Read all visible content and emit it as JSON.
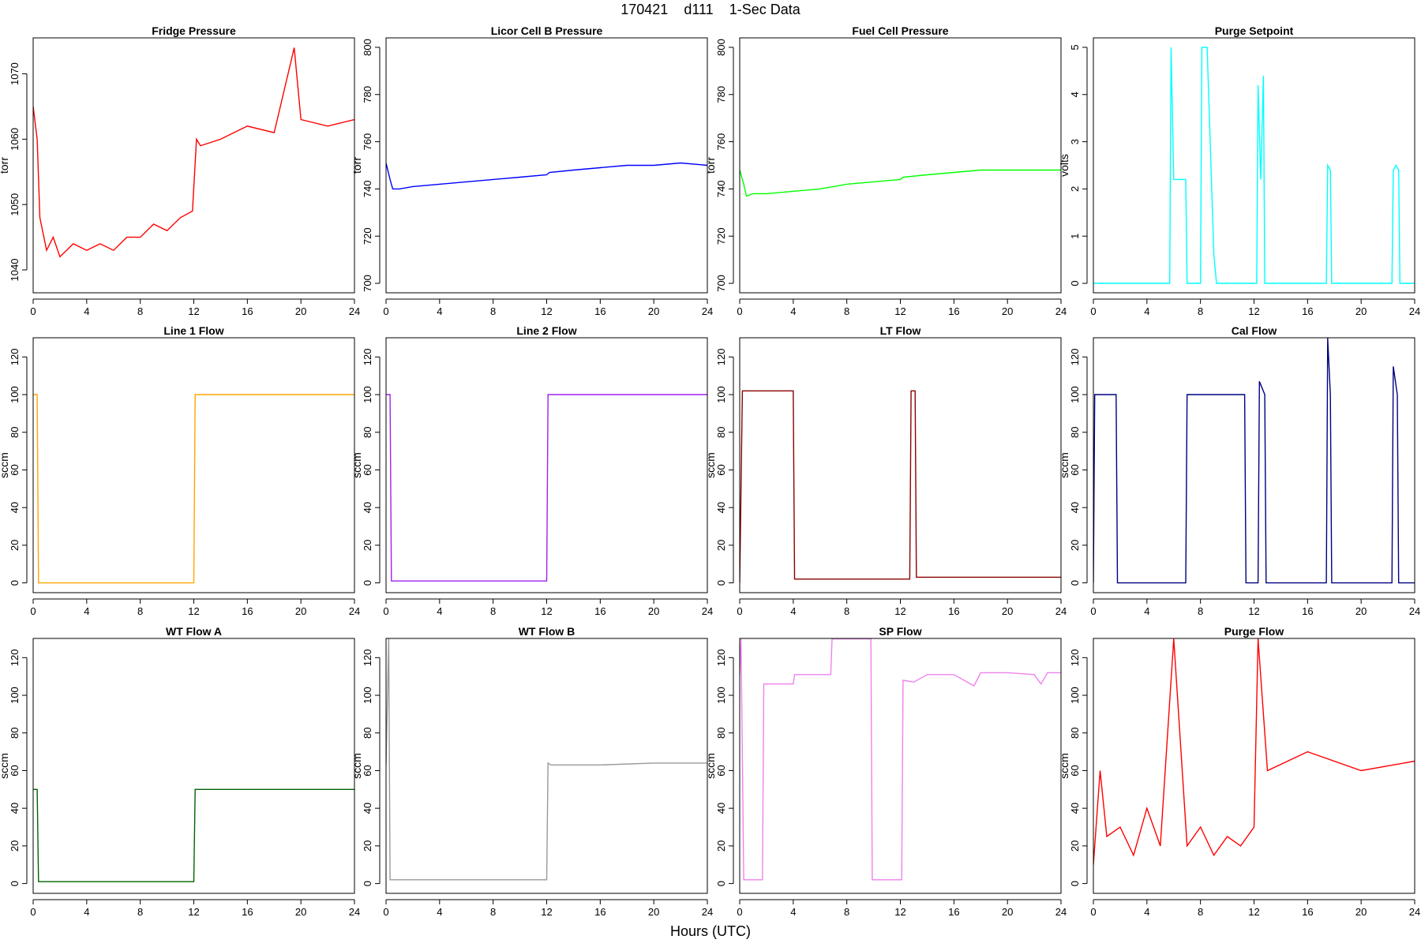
{
  "figure": {
    "title": "170421    d111    1-Sec Data",
    "xlabel": "Hours (UTC)"
  },
  "chart_data": [
    {
      "type": "line",
      "title": "Fridge Pressure",
      "ylabel": "torr",
      "color": "#ff0000",
      "xlim": [
        0,
        24
      ],
      "ylim": [
        1036.5,
        1075.5
      ],
      "xticks": [
        0,
        4,
        8,
        12,
        16,
        20,
        24
      ],
      "yticks": [
        1040,
        1050,
        1060,
        1070
      ],
      "series": [
        {
          "name": "Fridge Pressure",
          "x": [
            0,
            0.3,
            0.5,
            1,
            1.5,
            2,
            3,
            4,
            5,
            6,
            7,
            8,
            9,
            10,
            11,
            11.9,
            12.2,
            12.5,
            14,
            16,
            18,
            19.5,
            20,
            22,
            24
          ],
          "y": [
            1065,
            1060,
            1048,
            1043,
            1045,
            1042,
            1044,
            1043,
            1044,
            1043,
            1045,
            1045,
            1047,
            1046,
            1048,
            1049,
            1060,
            1059,
            1060,
            1062,
            1061,
            1074,
            1063,
            1062,
            1063
          ]
        }
      ]
    },
    {
      "type": "line",
      "title": "Licor Cell B Pressure",
      "ylabel": "torr",
      "color": "#0000ff",
      "xlim": [
        0,
        24
      ],
      "ylim": [
        696,
        804
      ],
      "xticks": [
        0,
        4,
        8,
        12,
        16,
        20,
        24
      ],
      "yticks": [
        700,
        720,
        740,
        760,
        780,
        800
      ],
      "series": [
        {
          "name": "Licor Cell B Pressure",
          "x": [
            0,
            0.3,
            0.5,
            1,
            2,
            4,
            6,
            8,
            10,
            12,
            12.2,
            14,
            16,
            18,
            20,
            22,
            24
          ],
          "y": [
            751,
            744,
            740,
            740,
            741,
            742,
            743,
            744,
            745,
            746,
            747,
            748,
            749,
            750,
            750,
            751,
            750
          ]
        }
      ]
    },
    {
      "type": "line",
      "title": "Fuel Cell Pressure",
      "ylabel": "torr",
      "color": "#00ff00",
      "xlim": [
        0,
        24
      ],
      "ylim": [
        696,
        804
      ],
      "xticks": [
        0,
        4,
        8,
        12,
        16,
        20,
        24
      ],
      "yticks": [
        700,
        720,
        740,
        760,
        780,
        800
      ],
      "series": [
        {
          "name": "Fuel Cell Pressure",
          "x": [
            0,
            0.3,
            0.5,
            1,
            2,
            4,
            6,
            8,
            10,
            12,
            12.2,
            14,
            16,
            18,
            20,
            22,
            24
          ],
          "y": [
            748,
            742,
            737,
            738,
            738,
            739,
            740,
            742,
            743,
            744,
            745,
            746,
            747,
            748,
            748,
            748,
            748
          ]
        }
      ]
    },
    {
      "type": "line",
      "title": "Purge Setpoint",
      "ylabel": "volts",
      "color": "#00ffff",
      "xlim": [
        0,
        24
      ],
      "ylim": [
        -0.2,
        5.2
      ],
      "xticks": [
        0,
        4,
        8,
        12,
        16,
        20,
        24
      ],
      "yticks": [
        0,
        1,
        2,
        3,
        4,
        5
      ],
      "series": [
        {
          "name": "Purge Setpoint",
          "x": [
            0,
            5.7,
            5.8,
            6.0,
            6.2,
            6.9,
            7.0,
            8.0,
            8.1,
            8.5,
            9.0,
            9.2,
            12.2,
            12.3,
            12.5,
            12.7,
            12.8,
            17.4,
            17.5,
            17.7,
            17.8,
            22.3,
            22.4,
            22.6,
            22.8,
            22.9,
            24
          ],
          "y": [
            0,
            0,
            5,
            2.2,
            2.2,
            2.2,
            0,
            0,
            5,
            5,
            0.6,
            0,
            0,
            4.2,
            2.2,
            4.4,
            0,
            0,
            2.5,
            2.4,
            0,
            0,
            2.4,
            2.5,
            2.4,
            0,
            0
          ]
        }
      ]
    },
    {
      "type": "line",
      "title": "Line 1 Flow",
      "ylabel": "sccm",
      "color": "#ffa500",
      "xlim": [
        0,
        24
      ],
      "ylim": [
        -5.2,
        130.2
      ],
      "xticks": [
        0,
        4,
        8,
        12,
        16,
        20,
        24
      ],
      "yticks": [
        0,
        20,
        40,
        60,
        80,
        100,
        120
      ],
      "series": [
        {
          "name": "Line 1 Flow",
          "x": [
            0,
            0.3,
            0.4,
            12.0,
            12.1,
            12.2,
            16,
            20,
            24
          ],
          "y": [
            100,
            100,
            0,
            0,
            100,
            100,
            100,
            100,
            100
          ]
        }
      ]
    },
    {
      "type": "line",
      "title": "Line 2 Flow",
      "ylabel": "sccm",
      "color": "#a020f0",
      "xlim": [
        0,
        24
      ],
      "ylim": [
        -5.2,
        130.2
      ],
      "xticks": [
        0,
        4,
        8,
        12,
        16,
        20,
        24
      ],
      "yticks": [
        0,
        20,
        40,
        60,
        80,
        100,
        120
      ],
      "series": [
        {
          "name": "Line 2 Flow",
          "x": [
            0,
            0.3,
            0.4,
            12.0,
            12.1,
            12.2,
            16,
            20,
            24
          ],
          "y": [
            100,
            100,
            1,
            1,
            100,
            100,
            100,
            100,
            100
          ]
        }
      ]
    },
    {
      "type": "line",
      "title": "LT Flow",
      "ylabel": "sccm",
      "color": "#8b0000",
      "xlim": [
        0,
        24
      ],
      "ylim": [
        -5.2,
        130.2
      ],
      "xticks": [
        0,
        4,
        8,
        12,
        16,
        20,
        24
      ],
      "yticks": [
        0,
        20,
        40,
        60,
        80,
        100,
        120
      ],
      "series": [
        {
          "name": "LT Flow",
          "x": [
            0,
            0.2,
            0.3,
            4.0,
            4.1,
            12.7,
            12.8,
            13.1,
            13.2,
            16,
            20,
            24
          ],
          "y": [
            0,
            102,
            102,
            102,
            2,
            2,
            102,
            102,
            3,
            3,
            3,
            3
          ]
        }
      ]
    },
    {
      "type": "line",
      "title": "Cal Flow",
      "ylabel": "sccm",
      "color": "#000080",
      "xlim": [
        0,
        24
      ],
      "ylim": [
        -5.2,
        130.2
      ],
      "xticks": [
        0,
        4,
        8,
        12,
        16,
        20,
        24
      ],
      "yticks": [
        0,
        20,
        40,
        60,
        80,
        100,
        120
      ],
      "series": [
        {
          "name": "Cal Flow",
          "x": [
            0,
            0.1,
            1.7,
            1.8,
            6.9,
            7.0,
            11.3,
            11.4,
            12.3,
            12.4,
            12.8,
            12.9,
            17.4,
            17.5,
            17.7,
            17.8,
            22.3,
            22.4,
            22.7,
            22.8,
            24
          ],
          "y": [
            0,
            100,
            100,
            0,
            0,
            100,
            100,
            0,
            0,
            107,
            100,
            0,
            0,
            130,
            100,
            0,
            0,
            115,
            100,
            0,
            0
          ]
        }
      ]
    },
    {
      "type": "line",
      "title": "WT Flow A",
      "ylabel": "sccm",
      "color": "#006400",
      "xlim": [
        0,
        24
      ],
      "ylim": [
        -5.2,
        130.2
      ],
      "xticks": [
        0,
        4,
        8,
        12,
        16,
        20,
        24
      ],
      "yticks": [
        0,
        20,
        40,
        60,
        80,
        100,
        120
      ],
      "series": [
        {
          "name": "WT Flow A",
          "x": [
            0,
            0.3,
            0.4,
            12.0,
            12.1,
            12.2,
            16,
            20,
            24
          ],
          "y": [
            50,
            50,
            1,
            1,
            50,
            50,
            50,
            50,
            50
          ]
        }
      ]
    },
    {
      "type": "line",
      "title": "WT Flow B",
      "ylabel": "sccm",
      "color": "#999999",
      "xlim": [
        0,
        24
      ],
      "ylim": [
        -5.2,
        130.2
      ],
      "xticks": [
        0,
        4,
        8,
        12,
        16,
        20,
        24
      ],
      "yticks": [
        0,
        20,
        40,
        60,
        80,
        100,
        120
      ],
      "series": [
        {
          "name": "WT Flow B",
          "x": [
            0,
            0.2,
            0.3,
            12.0,
            12.1,
            12.3,
            16,
            20,
            24
          ],
          "y": [
            63,
            130,
            2,
            2,
            64,
            63,
            63,
            64,
            64
          ]
        }
      ]
    },
    {
      "type": "line",
      "title": "SP Flow",
      "ylabel": "sccm",
      "color": "#ee82ee",
      "xlim": [
        0,
        24
      ],
      "ylim": [
        -5.2,
        130.2
      ],
      "xticks": [
        0,
        4,
        8,
        12,
        16,
        20,
        24
      ],
      "yticks": [
        0,
        20,
        40,
        60,
        80,
        100,
        120
      ],
      "series": [
        {
          "name": "SP Flow",
          "x": [
            0,
            0.1,
            0.3,
            1.7,
            1.8,
            4.0,
            4.1,
            6.8,
            6.9,
            9.8,
            9.9,
            12.1,
            12.2,
            13.0,
            14,
            16,
            17.5,
            18,
            20,
            22,
            22.5,
            23,
            24
          ],
          "y": [
            111,
            130,
            2,
            2,
            106,
            106,
            111,
            111,
            130,
            130,
            2,
            2,
            108,
            107,
            111,
            111,
            105,
            112,
            112,
            111,
            106,
            112,
            112
          ]
        }
      ]
    },
    {
      "type": "line",
      "title": "Purge Flow",
      "ylabel": "sccm",
      "color": "#ff0000",
      "xlim": [
        0,
        24
      ],
      "ylim": [
        -5.2,
        130.2
      ],
      "xticks": [
        0,
        4,
        8,
        12,
        16,
        20,
        24
      ],
      "yticks": [
        0,
        20,
        40,
        60,
        80,
        100,
        120
      ],
      "series": [
        {
          "name": "Purge Flow",
          "x": [
            0,
            0.5,
            1,
            2,
            3,
            4,
            5,
            6,
            7,
            8,
            9,
            10,
            11,
            12,
            12.3,
            13,
            16,
            20,
            24
          ],
          "y": [
            10,
            60,
            25,
            30,
            15,
            40,
            20,
            130,
            20,
            30,
            15,
            25,
            20,
            30,
            130,
            60,
            70,
            60,
            65
          ]
        }
      ]
    }
  ]
}
